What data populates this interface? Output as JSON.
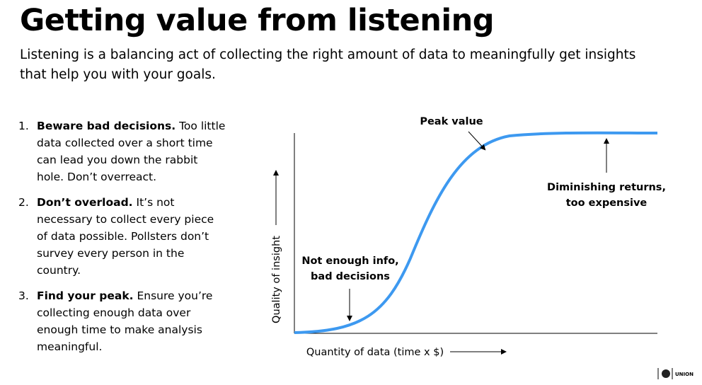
{
  "header": {
    "title": "Getting value from listening",
    "subtitle": "Listening is a balancing act of collecting the right amount of data to meaningfully get insights that help you with your goals."
  },
  "list": [
    {
      "number": "1.",
      "heading": "Beware bad decisions.",
      "text": "Too little data collected over a short time can lead you down the rabbit hole. Don’t overreact."
    },
    {
      "number": "2.",
      "heading": "Don’t overload.",
      "text": "It’s not necessary to collect every piece of data possible. Pollsters don’t survey every person in the country."
    },
    {
      "number": "3.",
      "heading": "Find your peak.",
      "text": "Ensure you’re collecting enough data over enough time to make analysis meaningful."
    }
  ],
  "diagram": {
    "peak": "Peak value",
    "diminishing": [
      "Diminishing returns,",
      "too expensive"
    ],
    "not_enough": [
      "Not enough info,",
      "bad decisions"
    ],
    "y_label": "Quality of insight",
    "x_label": "Quantity of data (time x $)"
  },
  "logo": "UNION"
}
